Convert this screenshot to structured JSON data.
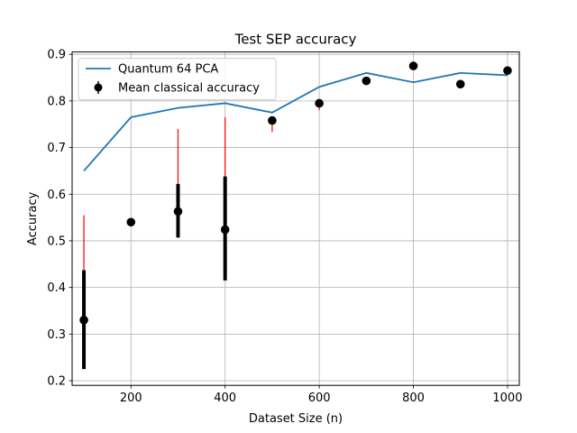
{
  "chart_data": {
    "type": "line",
    "title": "Test SEP accuracy",
    "xlabel": "Dataset Size (n)",
    "ylabel": "Accuracy",
    "xlim": [
      75,
      1025
    ],
    "ylim": [
      0.19,
      0.905
    ],
    "xticks": [
      200,
      400,
      600,
      800,
      1000
    ],
    "yticks": [
      0.2,
      0.3,
      0.4,
      0.5,
      0.6,
      0.7,
      0.8,
      0.9
    ],
    "grid": true,
    "legend_position": "top-left",
    "series": [
      {
        "name": "Quantum 64 PCA",
        "kind": "line",
        "color": "#1f77b4",
        "x": [
          100,
          200,
          300,
          400,
          500,
          600,
          700,
          800,
          900,
          1000
        ],
        "y": [
          0.65,
          0.765,
          0.785,
          0.795,
          0.775,
          0.83,
          0.86,
          0.84,
          0.86,
          0.855
        ]
      },
      {
        "name": "Mean classical accuracy",
        "kind": "errorbar",
        "color": "#000000",
        "x": [
          100,
          200,
          300,
          400,
          500,
          600,
          700,
          800,
          900,
          1000
        ],
        "y": [
          0.33,
          0.54,
          0.563,
          0.524,
          0.758,
          0.795,
          0.843,
          0.875,
          0.836,
          0.865
        ],
        "err_black": [
          [
            0.225,
            0.437
          ],
          null,
          [
            0.507,
            0.622
          ],
          [
            0.415,
            0.638
          ],
          null,
          null,
          null,
          null,
          null,
          null
        ],
        "err_red": [
          [
            0.248,
            0.555
          ],
          null,
          [
            0.545,
            0.74
          ],
          [
            0.47,
            0.765
          ],
          [
            0.733,
            0.763
          ],
          [
            0.78,
            0.8
          ],
          null,
          null,
          null,
          null
        ]
      }
    ]
  }
}
